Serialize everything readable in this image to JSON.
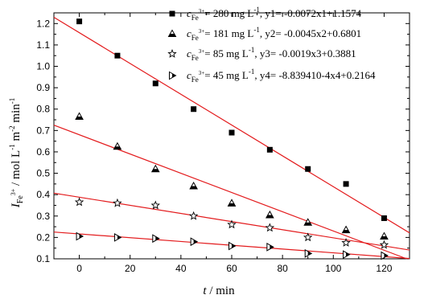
{
  "chart_data": {
    "type": "scatter",
    "xlabel_var": "t",
    "xlabel_unit": " / min",
    "ylabel_var": "I",
    "ylabel_sub": "Fe",
    "ylabel_sup": "3+",
    "ylabel_unit": " / mol L",
    "ylabel_unit_sup1": "-1",
    "ylabel_unit_mid": " m",
    "ylabel_unit_sup2": "-2",
    "ylabel_unit_end": " min",
    "ylabel_unit_sup3": "-1",
    "xlim": [
      -10,
      130
    ],
    "ylim": [
      0.1,
      1.25
    ],
    "x_ticks": [
      0,
      20,
      40,
      60,
      80,
      100,
      120
    ],
    "y_ticks": [
      0.1,
      0.2,
      0.3,
      0.4,
      0.5,
      0.6,
      0.7,
      0.8,
      0.9,
      1.0,
      1.1,
      1.2
    ],
    "x_tick_labels": [
      "0",
      "20",
      "40",
      "60",
      "80",
      "100",
      "120"
    ],
    "y_tick_labels": [
      "0.1",
      "0.2",
      "0.3",
      "0.4",
      "0.5",
      "0.6",
      "0.7",
      "0.8",
      "0.9",
      "1.0",
      "1.1",
      "1.2"
    ],
    "fit_line_color": "#e31a1c",
    "series": [
      {
        "marker": "square",
        "legend_c": "c",
        "legend_sub": "Fe",
        "legend_sup": "3+",
        "legend_eq_text": "= 280 mg L",
        "legend_unit_sup": "-1",
        "legend_fit_text": ", y1= -0.0072x1+1.1574",
        "x": [
          0,
          15,
          30,
          45,
          60,
          75,
          90,
          105,
          120
        ],
        "y": [
          1.21,
          1.05,
          0.92,
          0.8,
          0.69,
          0.61,
          0.52,
          0.45,
          0.29
        ],
        "fit": {
          "slope": -0.0072,
          "intercept": 1.1574
        }
      },
      {
        "marker": "triangle-up",
        "legend_c": "c",
        "legend_sub": "Fe",
        "legend_sup": "3+",
        "legend_eq_text": "= 181 mg L",
        "legend_unit_sup": "-1",
        "legend_fit_text": ", y2= -0.0045x2+0.6801",
        "x": [
          0,
          15,
          30,
          45,
          60,
          75,
          90,
          105,
          120
        ],
        "y": [
          0.765,
          0.625,
          0.52,
          0.44,
          0.36,
          0.305,
          0.27,
          0.235,
          0.205
        ],
        "fit": {
          "slope": -0.0045,
          "intercept": 0.6801
        }
      },
      {
        "marker": "star",
        "legend_c": "c",
        "legend_sub": "Fe",
        "legend_sup": "3+",
        "legend_eq_text": "= 85 mg L",
        "legend_unit_sup": "-1",
        "legend_fit_text": ", y3= -0.0019x3+0.3881",
        "x": [
          0,
          15,
          30,
          45,
          60,
          75,
          90,
          105,
          120
        ],
        "y": [
          0.365,
          0.36,
          0.35,
          0.3,
          0.26,
          0.245,
          0.2,
          0.175,
          0.165
        ],
        "fit": {
          "slope": -0.0019,
          "intercept": 0.3881
        }
      },
      {
        "marker": "triangle-right",
        "legend_c": "c",
        "legend_sub": "Fe",
        "legend_sup": "3+",
        "legend_eq_text": "= 45 mg L",
        "legend_unit_sup": "-1",
        "legend_fit_text": ", y4= -8.839410-4x4+0.2164",
        "x": [
          0,
          15,
          30,
          45,
          60,
          75,
          90,
          105,
          120
        ],
        "y": [
          0.205,
          0.2,
          0.195,
          0.18,
          0.16,
          0.155,
          0.125,
          0.12,
          0.115
        ],
        "fit": {
          "slope": -0.00088394,
          "intercept": 0.2164
        }
      }
    ]
  }
}
